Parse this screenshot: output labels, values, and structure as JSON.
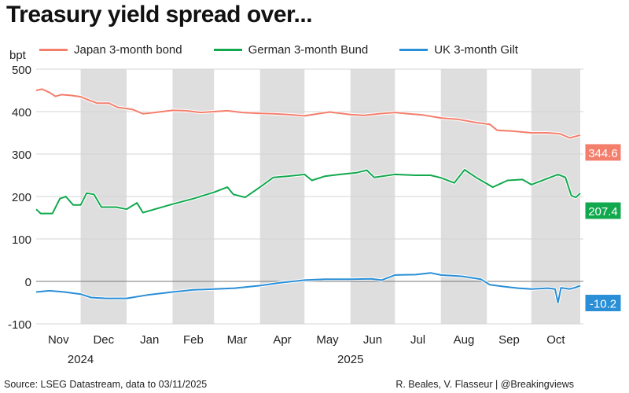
{
  "chart_data": {
    "type": "line",
    "title": "Treasury yield spread over...",
    "ylabel": "bpt",
    "ylim": [
      -100,
      500
    ],
    "yticks": [
      -100,
      0,
      100,
      200,
      300,
      400,
      500
    ],
    "xlim": [
      "2024-11-01",
      "2025-11-03"
    ],
    "month_labels": [
      "Nov",
      "Dec",
      "Jan",
      "Feb",
      "Mar",
      "Apr",
      "May",
      "Jun",
      "Jul",
      "Aug",
      "Sep",
      "Oct"
    ],
    "year_labels": [
      "2024",
      "2025"
    ],
    "grid": true,
    "legend_position": "top",
    "series": [
      {
        "name": "Japan 3-month bond",
        "color": "#f47e6c",
        "last_label": "344.6",
        "points": [
          [
            "2024-11-01",
            450
          ],
          [
            "2024-11-05",
            453
          ],
          [
            "2024-11-10",
            445
          ],
          [
            "2024-11-14",
            436
          ],
          [
            "2024-11-18",
            440
          ],
          [
            "2024-11-25",
            438
          ],
          [
            "2024-12-01",
            435
          ],
          [
            "2024-12-06",
            428
          ],
          [
            "2024-12-12",
            420
          ],
          [
            "2024-12-20",
            420
          ],
          [
            "2024-12-26",
            410
          ],
          [
            "2025-01-05",
            405
          ],
          [
            "2025-01-12",
            395
          ],
          [
            "2025-01-20",
            398
          ],
          [
            "2025-02-01",
            403
          ],
          [
            "2025-02-10",
            402
          ],
          [
            "2025-02-20",
            398
          ],
          [
            "2025-03-01",
            400
          ],
          [
            "2025-03-10",
            402
          ],
          [
            "2025-03-20",
            398
          ],
          [
            "2025-04-01",
            396
          ],
          [
            "2025-04-10",
            395
          ],
          [
            "2025-04-20",
            393
          ],
          [
            "2025-05-01",
            390
          ],
          [
            "2025-05-10",
            395
          ],
          [
            "2025-05-18",
            399
          ],
          [
            "2025-06-01",
            393
          ],
          [
            "2025-06-10",
            391
          ],
          [
            "2025-06-20",
            395
          ],
          [
            "2025-07-01",
            398
          ],
          [
            "2025-07-10",
            395
          ],
          [
            "2025-07-20",
            392
          ],
          [
            "2025-08-01",
            385
          ],
          [
            "2025-08-12",
            382
          ],
          [
            "2025-08-25",
            374
          ],
          [
            "2025-09-03",
            370
          ],
          [
            "2025-09-08",
            356
          ],
          [
            "2025-09-18",
            354
          ],
          [
            "2025-10-01",
            350
          ],
          [
            "2025-10-12",
            350
          ],
          [
            "2025-10-20",
            348
          ],
          [
            "2025-10-27",
            338
          ],
          [
            "2025-11-03",
            344.6
          ]
        ]
      },
      {
        "name": "German 3-month Bund",
        "color": "#12a84e",
        "last_label": "207.4",
        "points": [
          [
            "2024-11-01",
            170
          ],
          [
            "2024-11-04",
            160
          ],
          [
            "2024-11-12",
            160
          ],
          [
            "2024-11-17",
            195
          ],
          [
            "2024-11-21",
            200
          ],
          [
            "2024-11-26",
            180
          ],
          [
            "2024-12-01",
            180
          ],
          [
            "2024-12-05",
            208
          ],
          [
            "2024-12-10",
            205
          ],
          [
            "2024-12-15",
            175
          ],
          [
            "2024-12-25",
            175
          ],
          [
            "2025-01-01",
            170
          ],
          [
            "2025-01-08",
            185
          ],
          [
            "2025-01-12",
            162
          ],
          [
            "2025-01-20",
            170
          ],
          [
            "2025-02-01",
            182
          ],
          [
            "2025-02-15",
            195
          ],
          [
            "2025-03-01",
            210
          ],
          [
            "2025-03-10",
            222
          ],
          [
            "2025-03-14",
            205
          ],
          [
            "2025-03-22",
            198
          ],
          [
            "2025-04-01",
            222
          ],
          [
            "2025-04-10",
            245
          ],
          [
            "2025-04-20",
            248
          ],
          [
            "2025-05-01",
            252
          ],
          [
            "2025-05-06",
            238
          ],
          [
            "2025-05-15",
            248
          ],
          [
            "2025-05-25",
            252
          ],
          [
            "2025-06-05",
            256
          ],
          [
            "2025-06-12",
            262
          ],
          [
            "2025-06-17",
            245
          ],
          [
            "2025-07-01",
            252
          ],
          [
            "2025-07-15",
            250
          ],
          [
            "2025-07-25",
            250
          ],
          [
            "2025-08-01",
            244
          ],
          [
            "2025-08-10",
            232
          ],
          [
            "2025-08-17",
            263
          ],
          [
            "2025-08-26",
            242
          ],
          [
            "2025-09-01",
            230
          ],
          [
            "2025-09-05",
            222
          ],
          [
            "2025-09-15",
            238
          ],
          [
            "2025-09-25",
            240
          ],
          [
            "2025-10-01",
            228
          ],
          [
            "2025-10-10",
            240
          ],
          [
            "2025-10-19",
            252
          ],
          [
            "2025-10-24",
            245
          ],
          [
            "2025-10-28",
            202
          ],
          [
            "2025-10-31",
            198
          ],
          [
            "2025-11-03",
            207.4
          ]
        ]
      },
      {
        "name": "UK 3-month Gilt",
        "color": "#2a8fd6",
        "last_label": "-10.2",
        "points": [
          [
            "2024-11-01",
            -25
          ],
          [
            "2024-11-10",
            -22
          ],
          [
            "2024-11-20",
            -25
          ],
          [
            "2024-12-01",
            -30
          ],
          [
            "2024-12-08",
            -38
          ],
          [
            "2024-12-18",
            -40
          ],
          [
            "2025-01-01",
            -40
          ],
          [
            "2025-01-15",
            -32
          ],
          [
            "2025-02-01",
            -25
          ],
          [
            "2025-02-15",
            -20
          ],
          [
            "2025-03-01",
            -18
          ],
          [
            "2025-03-15",
            -16
          ],
          [
            "2025-04-01",
            -10
          ],
          [
            "2025-04-15",
            -3
          ],
          [
            "2025-05-01",
            3
          ],
          [
            "2025-05-15",
            5
          ],
          [
            "2025-06-01",
            5
          ],
          [
            "2025-06-15",
            6
          ],
          [
            "2025-06-22",
            3
          ],
          [
            "2025-07-01",
            15
          ],
          [
            "2025-07-15",
            16
          ],
          [
            "2025-07-25",
            20
          ],
          [
            "2025-08-01",
            15
          ],
          [
            "2025-08-15",
            12
          ],
          [
            "2025-08-28",
            5
          ],
          [
            "2025-09-03",
            -8
          ],
          [
            "2025-09-12",
            -12
          ],
          [
            "2025-09-22",
            -16
          ],
          [
            "2025-10-01",
            -18
          ],
          [
            "2025-10-12",
            -16
          ],
          [
            "2025-10-17",
            -18
          ],
          [
            "2025-10-19",
            -50
          ],
          [
            "2025-10-21",
            -15
          ],
          [
            "2025-10-27",
            -18
          ],
          [
            "2025-10-31",
            -14
          ],
          [
            "2025-11-03",
            -10.2
          ]
        ]
      }
    ]
  },
  "footer": {
    "source": "Source: LSEG Datastream, data to 03/11/2025",
    "credit": "R. Beales, V. Flasseur | @Breakingviews"
  }
}
